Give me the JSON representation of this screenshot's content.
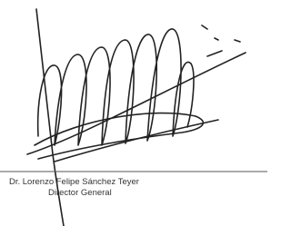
{
  "signature_block": {
    "name": "Dr. Lorenzo Felipe Sánchez Teyer",
    "position": "Director General"
  }
}
